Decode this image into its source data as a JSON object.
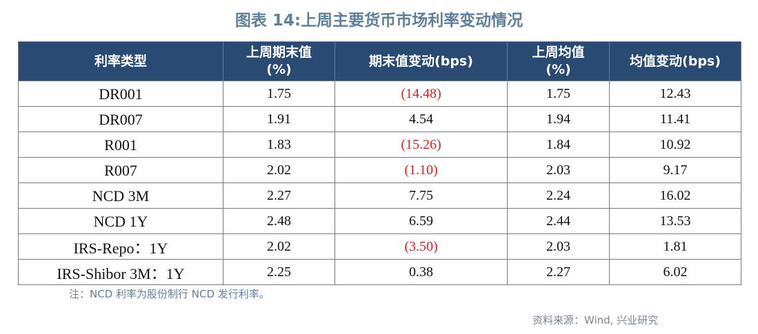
{
  "title": "图表 14:上周主要货币市场利率变动情况",
  "table": {
    "headers": [
      "利率类型",
      "上周期末值\n(%)",
      "期末值变动(bps)",
      "上周均值\n(%)",
      "均值变动(bps)"
    ],
    "rows": [
      {
        "name": "DR001",
        "end_value": "1.75",
        "end_change": "(14.48)",
        "end_change_negative": true,
        "avg_value": "1.75",
        "avg_change": "12.43"
      },
      {
        "name": "DR007",
        "end_value": "1.91",
        "end_change": "4.54",
        "end_change_negative": false,
        "avg_value": "1.94",
        "avg_change": "11.41"
      },
      {
        "name": "R001",
        "end_value": "1.83",
        "end_change": "(15.26)",
        "end_change_negative": true,
        "avg_value": "1.84",
        "avg_change": "10.92"
      },
      {
        "name": "R007",
        "end_value": "2.02",
        "end_change": "(1.10)",
        "end_change_negative": true,
        "avg_value": "2.03",
        "avg_change": "9.17"
      },
      {
        "name": "NCD 3M",
        "end_value": "2.27",
        "end_change": "7.75",
        "end_change_negative": false,
        "avg_value": "2.24",
        "avg_change": "16.02"
      },
      {
        "name": "NCD 1Y",
        "end_value": "2.48",
        "end_change": "6.59",
        "end_change_negative": false,
        "avg_value": "2.44",
        "avg_change": "13.53"
      },
      {
        "name": "IRS-Repo：1Y",
        "end_value": "2.02",
        "end_change": "(3.50)",
        "end_change_negative": true,
        "avg_value": "2.03",
        "avg_change": "1.81"
      },
      {
        "name": "IRS-Shibor 3M：1Y",
        "end_value": "2.25",
        "end_change": "0.38",
        "end_change_negative": false,
        "avg_value": "2.27",
        "avg_change": "6.02"
      }
    ]
  },
  "note": "注：NCD 利率为股份制行 NCD 发行利率。",
  "source": "资料来源：Wind, 兴业研究",
  "colors": {
    "title": "#5f7f9b",
    "header_bg": "#284a73",
    "negative": "#e02020"
  }
}
